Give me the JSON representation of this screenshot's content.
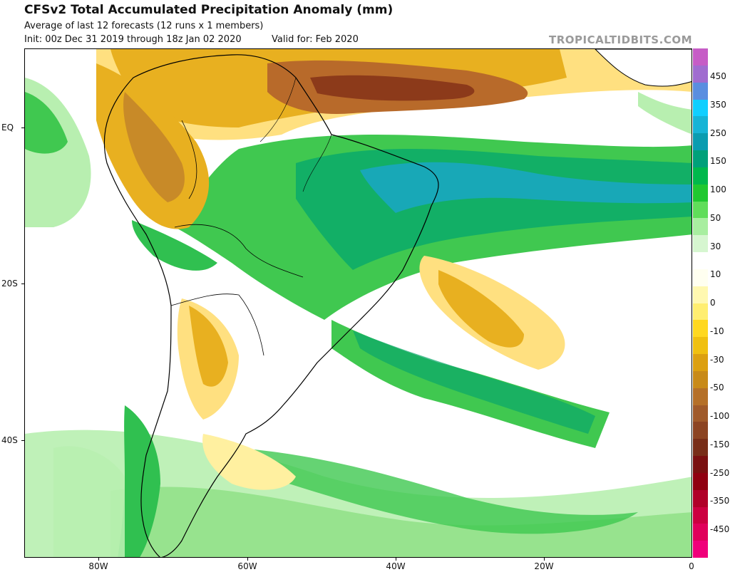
{
  "header": {
    "title": "CFSv2 Total Accumulated Precipitation Anomaly (mm)",
    "subtitle": "Average of last 12 forecasts (12 runs x 1 members)",
    "init": "Init: 00z Dec 31 2019 through 18z Jan 02 2020",
    "valid": "Valid for: Feb 2020",
    "brand": "TROPICALTIDBITS.COM"
  },
  "map": {
    "lat_labels": [
      "EQ",
      "20S",
      "40S"
    ],
    "lon_labels": [
      "80W",
      "60W",
      "40W",
      "20W",
      "0"
    ],
    "region": "South America and South Atlantic"
  },
  "colorbar": {
    "labels": [
      "450",
      "350",
      "250",
      "150",
      "100",
      "50",
      "30",
      "10",
      "0",
      "-10",
      "-30",
      "-50",
      "-100",
      "-150",
      "-250",
      "-350",
      "-450"
    ],
    "colors": [
      "#c65cc6",
      "#a06cd0",
      "#5a8ee0",
      "#10cfff",
      "#16b4d6",
      "#0a9cb0",
      "#00a07a",
      "#00b84c",
      "#20c830",
      "#60dd5a",
      "#a8eea0",
      "#d6f6d0",
      "#ffffff",
      "#fffff0",
      "#fff8b0",
      "#ffee70",
      "#ffd820",
      "#f0c010",
      "#dca010",
      "#c88a18",
      "#b57028",
      "#a05a2a",
      "#8c4422",
      "#782e18",
      "#7a1010",
      "#900010",
      "#b00028",
      "#cc0040",
      "#e0005a",
      "#f0007a"
    ]
  }
}
